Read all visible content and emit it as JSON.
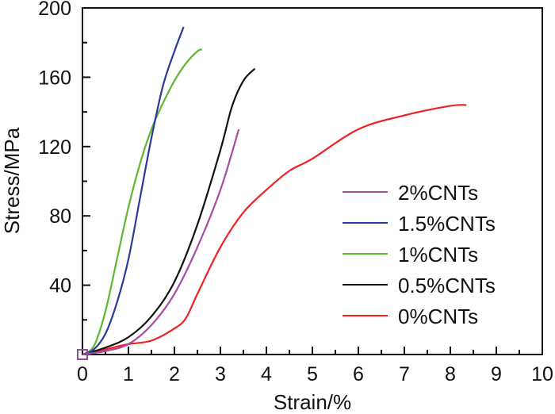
{
  "chart_data": {
    "type": "line",
    "title": "",
    "xlabel": "Strain/%",
    "ylabel": "Stress/MPa",
    "xlim": [
      0,
      10
    ],
    "ylim": [
      0,
      200
    ],
    "xticks": [
      "0",
      "1",
      "2",
      "3",
      "4",
      "5",
      "6",
      "7",
      "8",
      "9",
      "10"
    ],
    "yticks": [
      "40",
      "80",
      "120",
      "160",
      "200"
    ],
    "ytick_values": [
      40,
      80,
      120,
      160,
      200
    ],
    "grid": false,
    "legend_position": "lower-right",
    "series": [
      {
        "name": "2%CNTs",
        "color": "#a64ca6",
        "x": [
          0,
          0.5,
          1,
          1.5,
          2,
          2.5,
          3,
          3.4
        ],
        "y": [
          0,
          2,
          6,
          17,
          35,
          62,
          95,
          130
        ]
      },
      {
        "name": "1.5%CNTs",
        "color": "#2b3a9a",
        "x": [
          0,
          0.25,
          0.5,
          0.75,
          1,
          1.25,
          1.5,
          1.75,
          2,
          2.2
        ],
        "y": [
          0,
          3,
          12,
          30,
          55,
          90,
          125,
          155,
          175,
          189
        ]
      },
      {
        "name": "1%CNTs",
        "color": "#5cb82e",
        "x": [
          0,
          0.25,
          0.5,
          0.75,
          1,
          1.25,
          1.5,
          1.75,
          2,
          2.25,
          2.5,
          2.6
        ],
        "y": [
          0,
          5,
          25,
          55,
          85,
          110,
          130,
          145,
          158,
          168,
          175,
          176
        ]
      },
      {
        "name": "0.5%CNTs",
        "color": "#111111",
        "x": [
          0,
          0.5,
          1,
          1.5,
          2,
          2.5,
          3,
          3.25,
          3.5,
          3.75
        ],
        "y": [
          0,
          4,
          10,
          22,
          42,
          75,
          118,
          143,
          158,
          165
        ]
      },
      {
        "name": "0%CNTs",
        "color": "#ee2222",
        "x": [
          0,
          0.5,
          1,
          1.5,
          2,
          2.25,
          2.5,
          3,
          3.5,
          4,
          4.5,
          5,
          6,
          7,
          8,
          8.35
        ],
        "y": [
          0,
          3,
          6,
          8,
          15,
          21,
          35,
          62,
          82,
          95,
          106,
          113,
          130,
          138,
          143.5,
          144
        ]
      }
    ]
  }
}
